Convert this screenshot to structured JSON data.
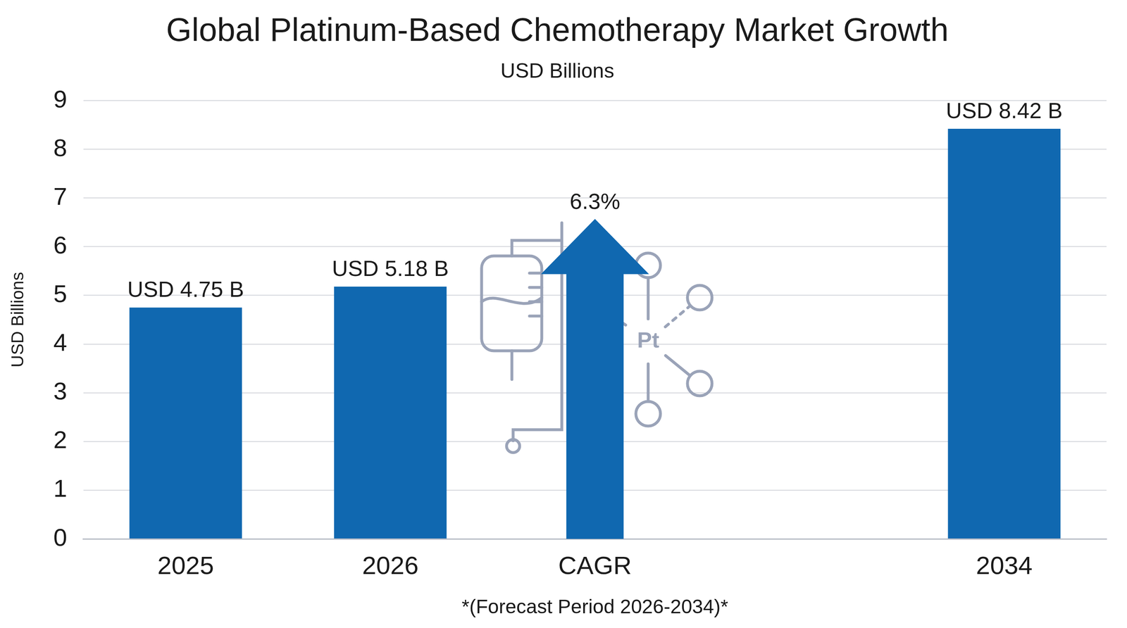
{
  "chart_data": {
    "type": "bar",
    "title": "Global Platinum-Based Chemotherapy Market Growth",
    "subtitle": "USD Billions",
    "y_label": "USD Billions",
    "x_label": "*(Forecast Period 2026-2034)*",
    "categories": [
      "2025",
      "2026",
      "CAGR",
      null,
      "2034"
    ],
    "values": [
      4.75,
      5.18,
      null,
      null,
      8.42
    ],
    "value_labels": [
      "USD 4.75 B",
      "USD 5.18 B",
      null,
      null,
      "USD 8.42 B"
    ],
    "color": "#1068b0",
    "ylim": [
      0,
      9
    ],
    "yticks": [
      0,
      1,
      2,
      3,
      4,
      5,
      6,
      7,
      8,
      9
    ],
    "grid": true,
    "data_labels": true,
    "annotations": [
      {
        "category": "CAGR",
        "text": "6.3%",
        "marker": "arrow"
      }
    ],
    "icon_label": "Pt"
  }
}
